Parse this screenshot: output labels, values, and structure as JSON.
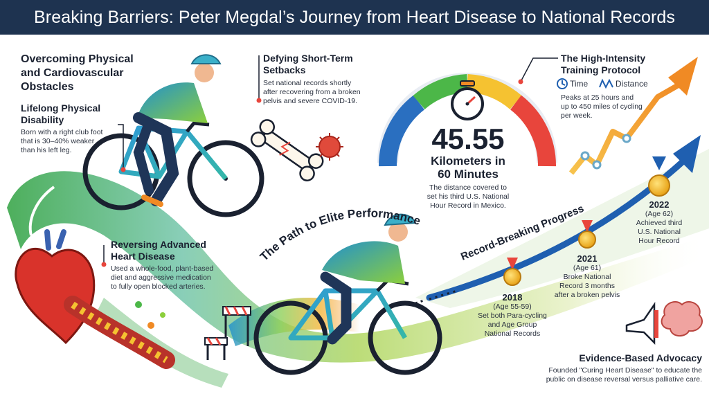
{
  "title": "Breaking Barriers: Peter Megdal’s Journey from Heart Disease to National Records",
  "obstacles": {
    "heading_1": "Overcoming Physical",
    "heading_2": "and Cardiovascular",
    "heading_3": "Obstacles"
  },
  "disability": {
    "heading_1": "Lifelong Physical",
    "heading_2": "Disability",
    "body_1": "Born with a right club foot",
    "body_2": "that is 30–40% weaker",
    "body_3": "than his left leg."
  },
  "setbacks": {
    "heading_1": "Defying Short-Term",
    "heading_2": "Setbacks",
    "body_1": "Set national records shortly",
    "body_2": "after recovering from a broken",
    "body_3": "pelvis and severe COVID-19."
  },
  "record": {
    "value": "45.55",
    "unit_1": "Kilometers in",
    "unit_2": "60 Minutes",
    "caption_1": "The distance covered to",
    "caption_2": "set his third U.S. National",
    "caption_3": "Hour Record in Mexico."
  },
  "training": {
    "heading_1": "The High-Intensity",
    "heading_2": "Training Protocol",
    "legend_time": "Time",
    "legend_distance": "Distance",
    "body_1": "Peaks at 25 hours and",
    "body_2": "up to 450 miles of cycling",
    "body_3": "per week."
  },
  "heart": {
    "heading_1": "Reversing Advanced",
    "heading_2": "Heart Disease",
    "body_1": "Used a whole-food, plant-based",
    "body_2": "diet and aggressive medication",
    "body_3": "to fully open blocked arteries."
  },
  "path_label": "The Path to Elite Performance",
  "progress_label": "Record-Breaking Progress",
  "milestones": [
    {
      "year": "2018",
      "age": "(Age 55-59)",
      "desc_1": "Set both Para-cycling",
      "desc_2": "and Age Group",
      "desc_3": "National Records"
    },
    {
      "year": "2021",
      "age": "(Age 61)",
      "desc_1": "Broke National",
      "desc_2": "Record 3 months",
      "desc_3": "after a broken pelvis"
    },
    {
      "year": "2022",
      "age": "(Age 62)",
      "desc_1": "Achieved third",
      "desc_2": "U.S. National",
      "desc_3": "Hour Record"
    }
  ],
  "advocacy": {
    "heading": "Evidence-Based Advocacy",
    "body_1": "Founded \"Curing Heart Disease\" to educate the",
    "body_2": "public on disease reversal versus palliative care."
  },
  "icons": [
    "cyclist-illustration",
    "bone-icon",
    "virus-icon",
    "stopwatch-icon",
    "speed-gauge",
    "clock-icon",
    "distance-icon",
    "growth-arrow",
    "heart-icon",
    "hurdle-icon",
    "medal-icon",
    "megaphone-icon",
    "brain-icon"
  ],
  "colors": {
    "header": "#1e3350",
    "accent_green": "#4cb748",
    "accent_blue": "#1f5fb0",
    "accent_orange": "#f08a24",
    "accent_red": "#e23b2e"
  }
}
